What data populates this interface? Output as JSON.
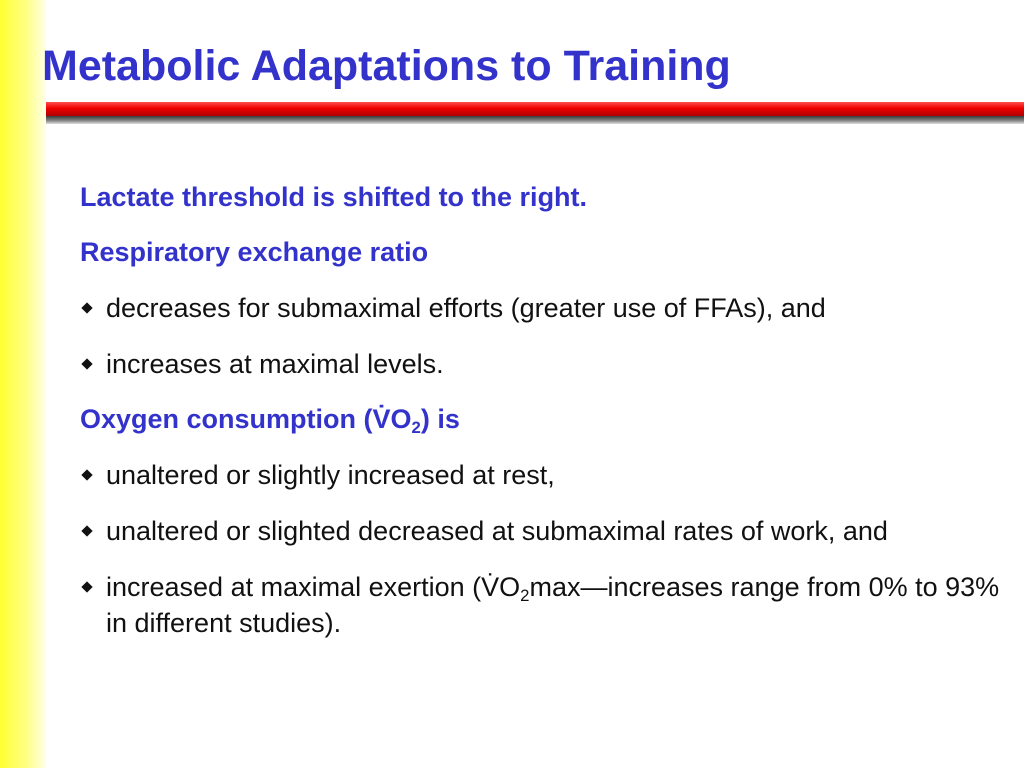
{
  "title": "Metabolic Adaptations to Training",
  "sections": [
    {
      "heading": "Lactate threshold is shifted to the right."
    },
    {
      "heading": "Respiratory exchange ratio",
      "bullets": [
        {
          "text": "decreases for submaximal efforts (greater use of FFAs), and"
        },
        {
          "text": "increases at maximal levels."
        }
      ]
    },
    {
      "heading_pre": "Oxygen consumption (V̇O",
      "heading_sub": "2",
      "heading_post": ") is",
      "bullets": [
        {
          "text": "unaltered or slightly increased at rest,"
        },
        {
          "text": "unaltered or slighted decreased at submaximal rates of work, and"
        },
        {
          "pre": "increased at maximal exertion (V̇O",
          "sub": "2",
          "post": "max—increases range from 0% to 93% in different studies)."
        }
      ]
    }
  ],
  "colors": {
    "title": "#3333cc",
    "heading": "#3333cc",
    "body_text": "#111111",
    "rule": "#ee0000",
    "side_band": "#ffff33"
  },
  "icons": {
    "bullet": "diamond-bullet-icon"
  }
}
